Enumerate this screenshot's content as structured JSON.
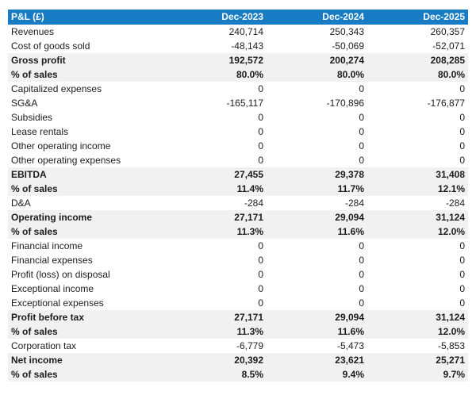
{
  "colors": {
    "header_bg": "#187cc4",
    "header_text": "#ffffff",
    "band_bg": "#f1f1f1",
    "body_text": "#1c1c1c"
  },
  "chart_data": {
    "type": "table",
    "title": "P&L (£)",
    "columns": [
      "Dec-2023",
      "Dec-2024",
      "Dec-2025"
    ],
    "rows": [
      {
        "label": "Revenues",
        "values": [
          "240,714",
          "250,343",
          "260,357"
        ],
        "emphasis": false
      },
      {
        "label": "Cost of goods sold",
        "values": [
          "-48,143",
          "-50,069",
          "-52,071"
        ],
        "emphasis": false
      },
      {
        "label": "Gross profit",
        "values": [
          "192,572",
          "200,274",
          "208,285"
        ],
        "emphasis": true
      },
      {
        "label": "% of sales",
        "values": [
          "80.0%",
          "80.0%",
          "80.0%"
        ],
        "emphasis": true
      },
      {
        "label": "Capitalized expenses",
        "values": [
          "0",
          "0",
          "0"
        ],
        "emphasis": false
      },
      {
        "label": "SG&A",
        "values": [
          "-165,117",
          "-170,896",
          "-176,877"
        ],
        "emphasis": false
      },
      {
        "label": "Subsidies",
        "values": [
          "0",
          "0",
          "0"
        ],
        "emphasis": false
      },
      {
        "label": "Lease rentals",
        "values": [
          "0",
          "0",
          "0"
        ],
        "emphasis": false
      },
      {
        "label": "Other operating income",
        "values": [
          "0",
          "0",
          "0"
        ],
        "emphasis": false
      },
      {
        "label": "Other operating expenses",
        "values": [
          "0",
          "0",
          "0"
        ],
        "emphasis": false
      },
      {
        "label": "EBITDA",
        "values": [
          "27,455",
          "29,378",
          "31,408"
        ],
        "emphasis": true
      },
      {
        "label": "% of sales",
        "values": [
          "11.4%",
          "11.7%",
          "12.1%"
        ],
        "emphasis": true
      },
      {
        "label": "D&A",
        "values": [
          "-284",
          "-284",
          "-284"
        ],
        "emphasis": false
      },
      {
        "label": "Operating income",
        "values": [
          "27,171",
          "29,094",
          "31,124"
        ],
        "emphasis": true
      },
      {
        "label": "% of sales",
        "values": [
          "11.3%",
          "11.6%",
          "12.0%"
        ],
        "emphasis": true
      },
      {
        "label": "Financial income",
        "values": [
          "0",
          "0",
          "0"
        ],
        "emphasis": false
      },
      {
        "label": "Financial expenses",
        "values": [
          "0",
          "0",
          "0"
        ],
        "emphasis": false
      },
      {
        "label": "Profit (loss) on disposal",
        "values": [
          "0",
          "0",
          "0"
        ],
        "emphasis": false
      },
      {
        "label": "Exceptional income",
        "values": [
          "0",
          "0",
          "0"
        ],
        "emphasis": false
      },
      {
        "label": "Exceptional expenses",
        "values": [
          "0",
          "0",
          "0"
        ],
        "emphasis": false
      },
      {
        "label": "Profit before tax",
        "values": [
          "27,171",
          "29,094",
          "31,124"
        ],
        "emphasis": true
      },
      {
        "label": "% of sales",
        "values": [
          "11.3%",
          "11.6%",
          "12.0%"
        ],
        "emphasis": true
      },
      {
        "label": "Corporation tax",
        "values": [
          "-6,779",
          "-5,473",
          "-5,853"
        ],
        "emphasis": false
      },
      {
        "label": "Net income",
        "values": [
          "20,392",
          "23,621",
          "25,271"
        ],
        "emphasis": true
      },
      {
        "label": "% of sales",
        "values": [
          "8.5%",
          "9.4%",
          "9.7%"
        ],
        "emphasis": true
      }
    ]
  }
}
